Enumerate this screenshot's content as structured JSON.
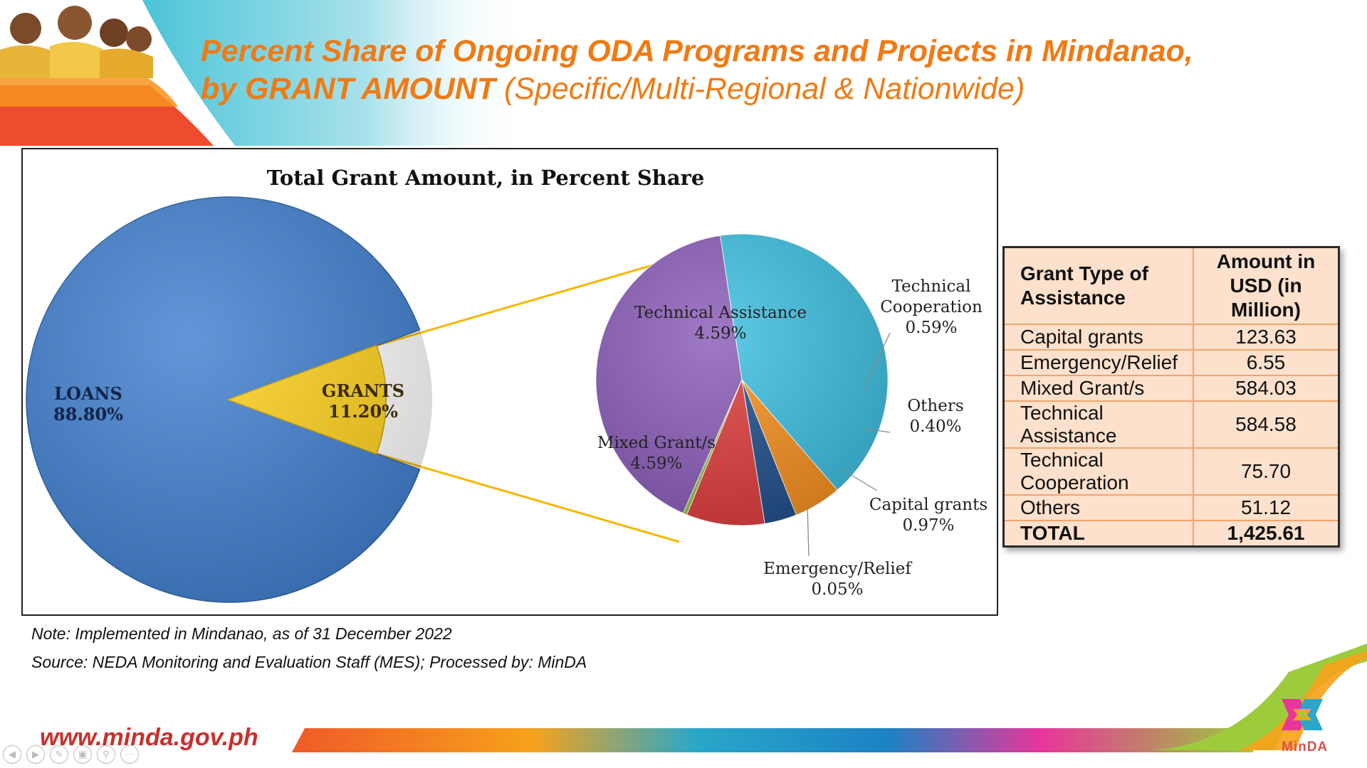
{
  "header": {
    "title_main": "Percent Share of Ongoing ODA Programs and Projects in Mindanao,",
    "title_line2_bold": "by GRANT AMOUNT",
    "title_line2_normal": "(Specific/Multi-Regional & Nationwide)"
  },
  "chart_data": {
    "type": "pie",
    "title": "Total Grant Amount, in Percent Share",
    "main_pie": {
      "slices": [
        {
          "label": "LOANS",
          "value_label": "88.80%",
          "value": 88.8,
          "color": "#3f7fcf"
        },
        {
          "label": "GRANTS",
          "value_label": "11.20%",
          "value": 11.2,
          "color": "#ffd11a"
        }
      ]
    },
    "breakdown_pie": {
      "slices": [
        {
          "label": "Technical Assistance",
          "value_label": "4.59%",
          "value": 4.59,
          "color": "#3bbfe0"
        },
        {
          "label": "Technical Cooperation",
          "value_label": "0.59%",
          "value": 0.59,
          "color": "#f7901e"
        },
        {
          "label": "Others",
          "value_label": "0.40%",
          "value": 0.4,
          "color": "#1f4e8c"
        },
        {
          "label": "Capital grants",
          "value_label": "0.97%",
          "value": 0.97,
          "color": "#e03b3b"
        },
        {
          "label": "Emergency/Relief",
          "value_label": "0.05%",
          "value": 0.05,
          "color": "#8cc63f"
        },
        {
          "label": "Mixed Grant/s",
          "value_label": "4.59%",
          "value": 4.59,
          "color": "#8a5bb8"
        }
      ]
    }
  },
  "table": {
    "headers": [
      "Grant Type of Assistance",
      "Amount in USD (in Million)"
    ],
    "rows": [
      {
        "type": "Capital grants",
        "amount": "123.63"
      },
      {
        "type": "Emergency/Relief",
        "amount": "6.55"
      },
      {
        "type": "Mixed Grant/s",
        "amount": "584.03"
      },
      {
        "type": "Technical Assistance",
        "amount": "584.58"
      },
      {
        "type": "Technical Cooperation",
        "amount": "75.70"
      },
      {
        "type": "Others",
        "amount": "51.12"
      }
    ],
    "total": {
      "type": "TOTAL",
      "amount": "1,425.61"
    }
  },
  "notes": {
    "note": "Note: Implemented in Mindanao, as of 31 December 2022",
    "source": "Source: NEDA Monitoring and Evaluation Staff (MES);  Processed by: MinDA"
  },
  "footer": {
    "url": "www.minda.gov.ph",
    "logo_text": "MinDA"
  },
  "controls": [
    "prev-icon",
    "next-icon",
    "pen-icon",
    "slides-icon",
    "zoom-icon",
    "more-icon"
  ]
}
